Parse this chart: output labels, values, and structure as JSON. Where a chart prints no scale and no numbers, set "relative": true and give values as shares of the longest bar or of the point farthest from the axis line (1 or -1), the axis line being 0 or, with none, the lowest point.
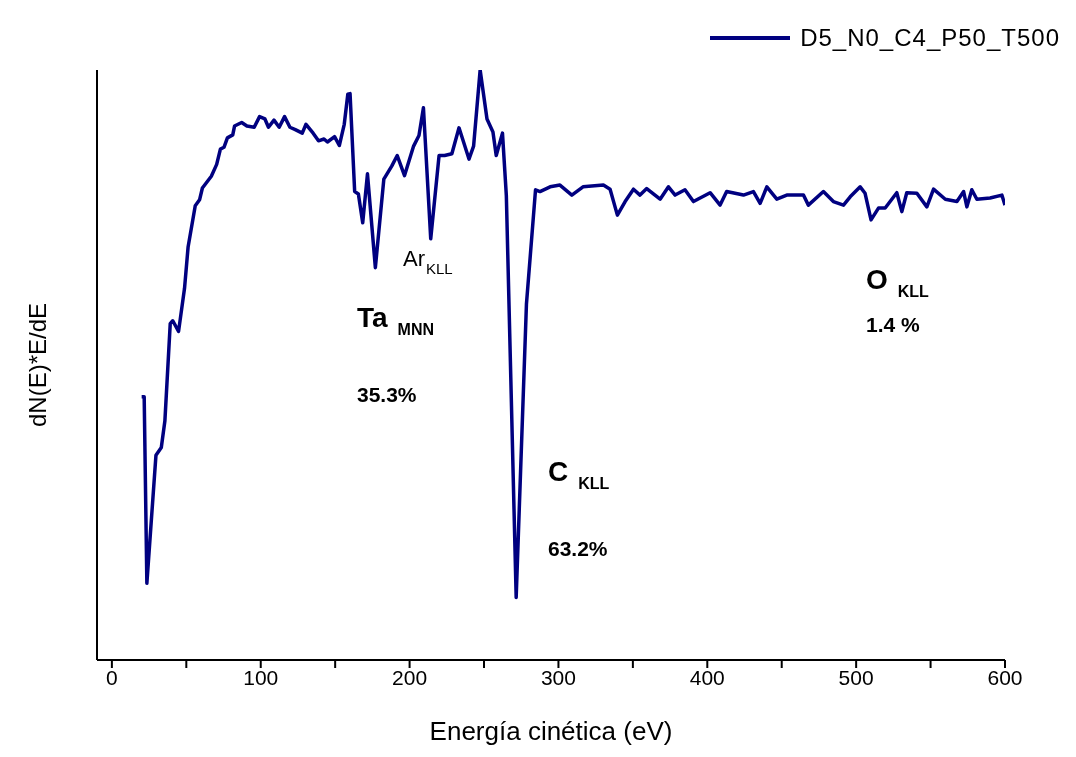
{
  "chart_data": {
    "type": "line",
    "relative": true,
    "xlabel": "Energía cinética (eV)",
    "ylabel": "dN(E)*E/dE",
    "xlim": [
      -10,
      600
    ],
    "xticks": [
      0,
      {
        "value": 50,
        "label": null
      },
      100,
      {
        "value": 150,
        "label": null
      },
      200,
      {
        "value": 250,
        "label": null
      },
      300,
      {
        "value": 350,
        "label": null
      },
      400,
      {
        "value": 450,
        "label": null
      },
      500,
      {
        "value": 550,
        "label": null
      },
      600
    ],
    "tick_labels": "x",
    "grid": false,
    "legend": "top right",
    "line_style": "solid",
    "x": [
      20,
      21.7,
      23.5,
      29.6,
      33.2,
      35.6,
      39.2,
      40.9,
      44.8,
      48.8,
      51.2,
      56,
      58.9,
      60.8,
      66.8,
      70.4,
      72.9,
      75.3,
      77.6,
      81.2,
      82.4,
      87.2,
      90.7,
      95.6,
      99.2,
      102.8,
      105.2,
      108.9,
      112.4,
      116,
      119.6,
      123.2,
      127.9,
      130.4,
      135.2,
      138.8,
      142.5,
      144.8,
      149.6,
      152.8,
      156.1,
      158.5,
      160,
      163.1,
      165.6,
      168.5,
      171.7,
      177,
      182.7,
      188,
      191.7,
      196.6,
      202.7,
      206.3,
      209.3,
      214.2,
      219.8,
      223.5,
      228.4,
      233.2,
      239.9,
      243,
      247.4,
      252,
      256,
      258.2,
      262.4,
      265,
      271.6,
      278.5,
      284.6,
      287.6,
      294.4,
      301,
      309,
      316.5,
      330.2,
      334.7,
      339.6,
      344.8,
      350.4,
      354.8,
      359.3,
      368.3,
      373.9,
      378.4,
      385,
      390.7,
      401.9,
      408.6,
      413,
      424.3,
      431,
      435.5,
      440,
      446.7,
      453.4,
      464.6,
      467.9,
      478,
      484.7,
      491.5,
      496,
      502.7,
      506,
      510,
      515,
      519.5,
      527.3,
      530.7,
      534,
      540.8,
      547.5,
      552,
      559.9,
      567.7,
      572.2,
      574.4,
      577.7,
      581.1,
      590,
      597.9,
      600
    ],
    "series": [
      {
        "name": "D5_N0_C4_P50_T500",
        "color": "#000080",
        "values": [
          0.446,
          0.446,
          0.13,
          0.347,
          0.36,
          0.405,
          0.57,
          0.575,
          0.557,
          0.63,
          0.7,
          0.77,
          0.78,
          0.8,
          0.82,
          0.84,
          0.866,
          0.869,
          0.885,
          0.89,
          0.905,
          0.911,
          0.905,
          0.903,
          0.921,
          0.917,
          0.903,
          0.915,
          0.903,
          0.921,
          0.903,
          0.899,
          0.893,
          0.908,
          0.893,
          0.88,
          0.883,
          0.878,
          0.887,
          0.872,
          0.908,
          0.959,
          0.96,
          0.794,
          0.79,
          0.741,
          0.824,
          0.665,
          0.815,
          0.837,
          0.855,
          0.821,
          0.871,
          0.889,
          0.936,
          0.714,
          0.855,
          0.855,
          0.858,
          0.902,
          0.849,
          0.871,
          1,
          0.917,
          0.895,
          0.855,
          0.893,
          0.787,
          0.106,
          0.603,
          0.797,
          0.794,
          0.802,
          0.805,
          0.788,
          0.802,
          0.805,
          0.798,
          0.754,
          0.777,
          0.798,
          0.788,
          0.799,
          0.781,
          0.802,
          0.788,
          0.797,
          0.777,
          0.792,
          0.771,
          0.794,
          0.788,
          0.794,
          0.774,
          0.802,
          0.781,
          0.788,
          0.788,
          0.771,
          0.794,
          0.777,
          0.771,
          0.785,
          0.802,
          0.791,
          0.746,
          0.766,
          0.766,
          0.792,
          0.76,
          0.792,
          0.791,
          0.768,
          0.798,
          0.781,
          0.777,
          0.794,
          0.768,
          0.797,
          0.781,
          0.783,
          0.788,
          0.771
        ]
      }
    ],
    "annotations": [
      "Ar$_{KLL}$",
      "Ta$_{MNN}$",
      "35.3%",
      "C$_{KLL}$",
      "63.2%",
      "O$_{KLL}$",
      "1.4 %"
    ]
  }
}
